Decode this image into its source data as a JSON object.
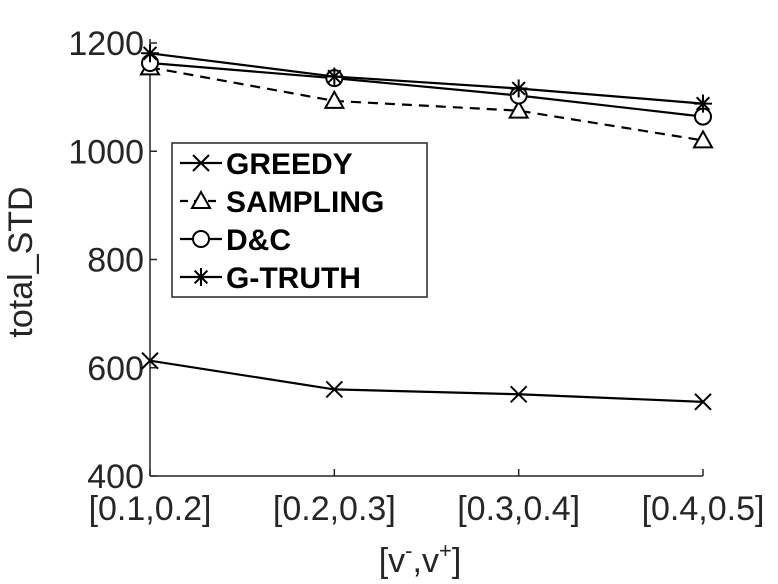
{
  "chart_data": {
    "type": "line",
    "categories": [
      "[0.1,0.2]",
      "[0.2,0.3]",
      "[0.3,0.4]",
      "[0.4,0.5]"
    ],
    "series": [
      {
        "name": "GREEDY",
        "values": [
          613,
          560,
          551,
          537
        ],
        "marker": "x",
        "dash": false
      },
      {
        "name": "SAMPLING",
        "values": [
          1155,
          1093,
          1075,
          1020
        ],
        "marker": "triangle",
        "dash": true
      },
      {
        "name": "D&C",
        "values": [
          1163,
          1135,
          1103,
          1064
        ],
        "marker": "circle",
        "dash": false
      },
      {
        "name": "G-TRUTH",
        "values": [
          1181,
          1138,
          1116,
          1088
        ],
        "marker": "star",
        "dash": false
      }
    ],
    "ylim": [
      400,
      1200
    ],
    "yticks": [
      400,
      600,
      800,
      1000,
      1200
    ],
    "ylabel": "total_STD",
    "xlabel": {
      "base": "[v",
      "sup1": "-",
      "mid": ",v",
      "sup2": "+",
      "end": "]"
    },
    "grid": false,
    "legend_position": "inside-left"
  }
}
